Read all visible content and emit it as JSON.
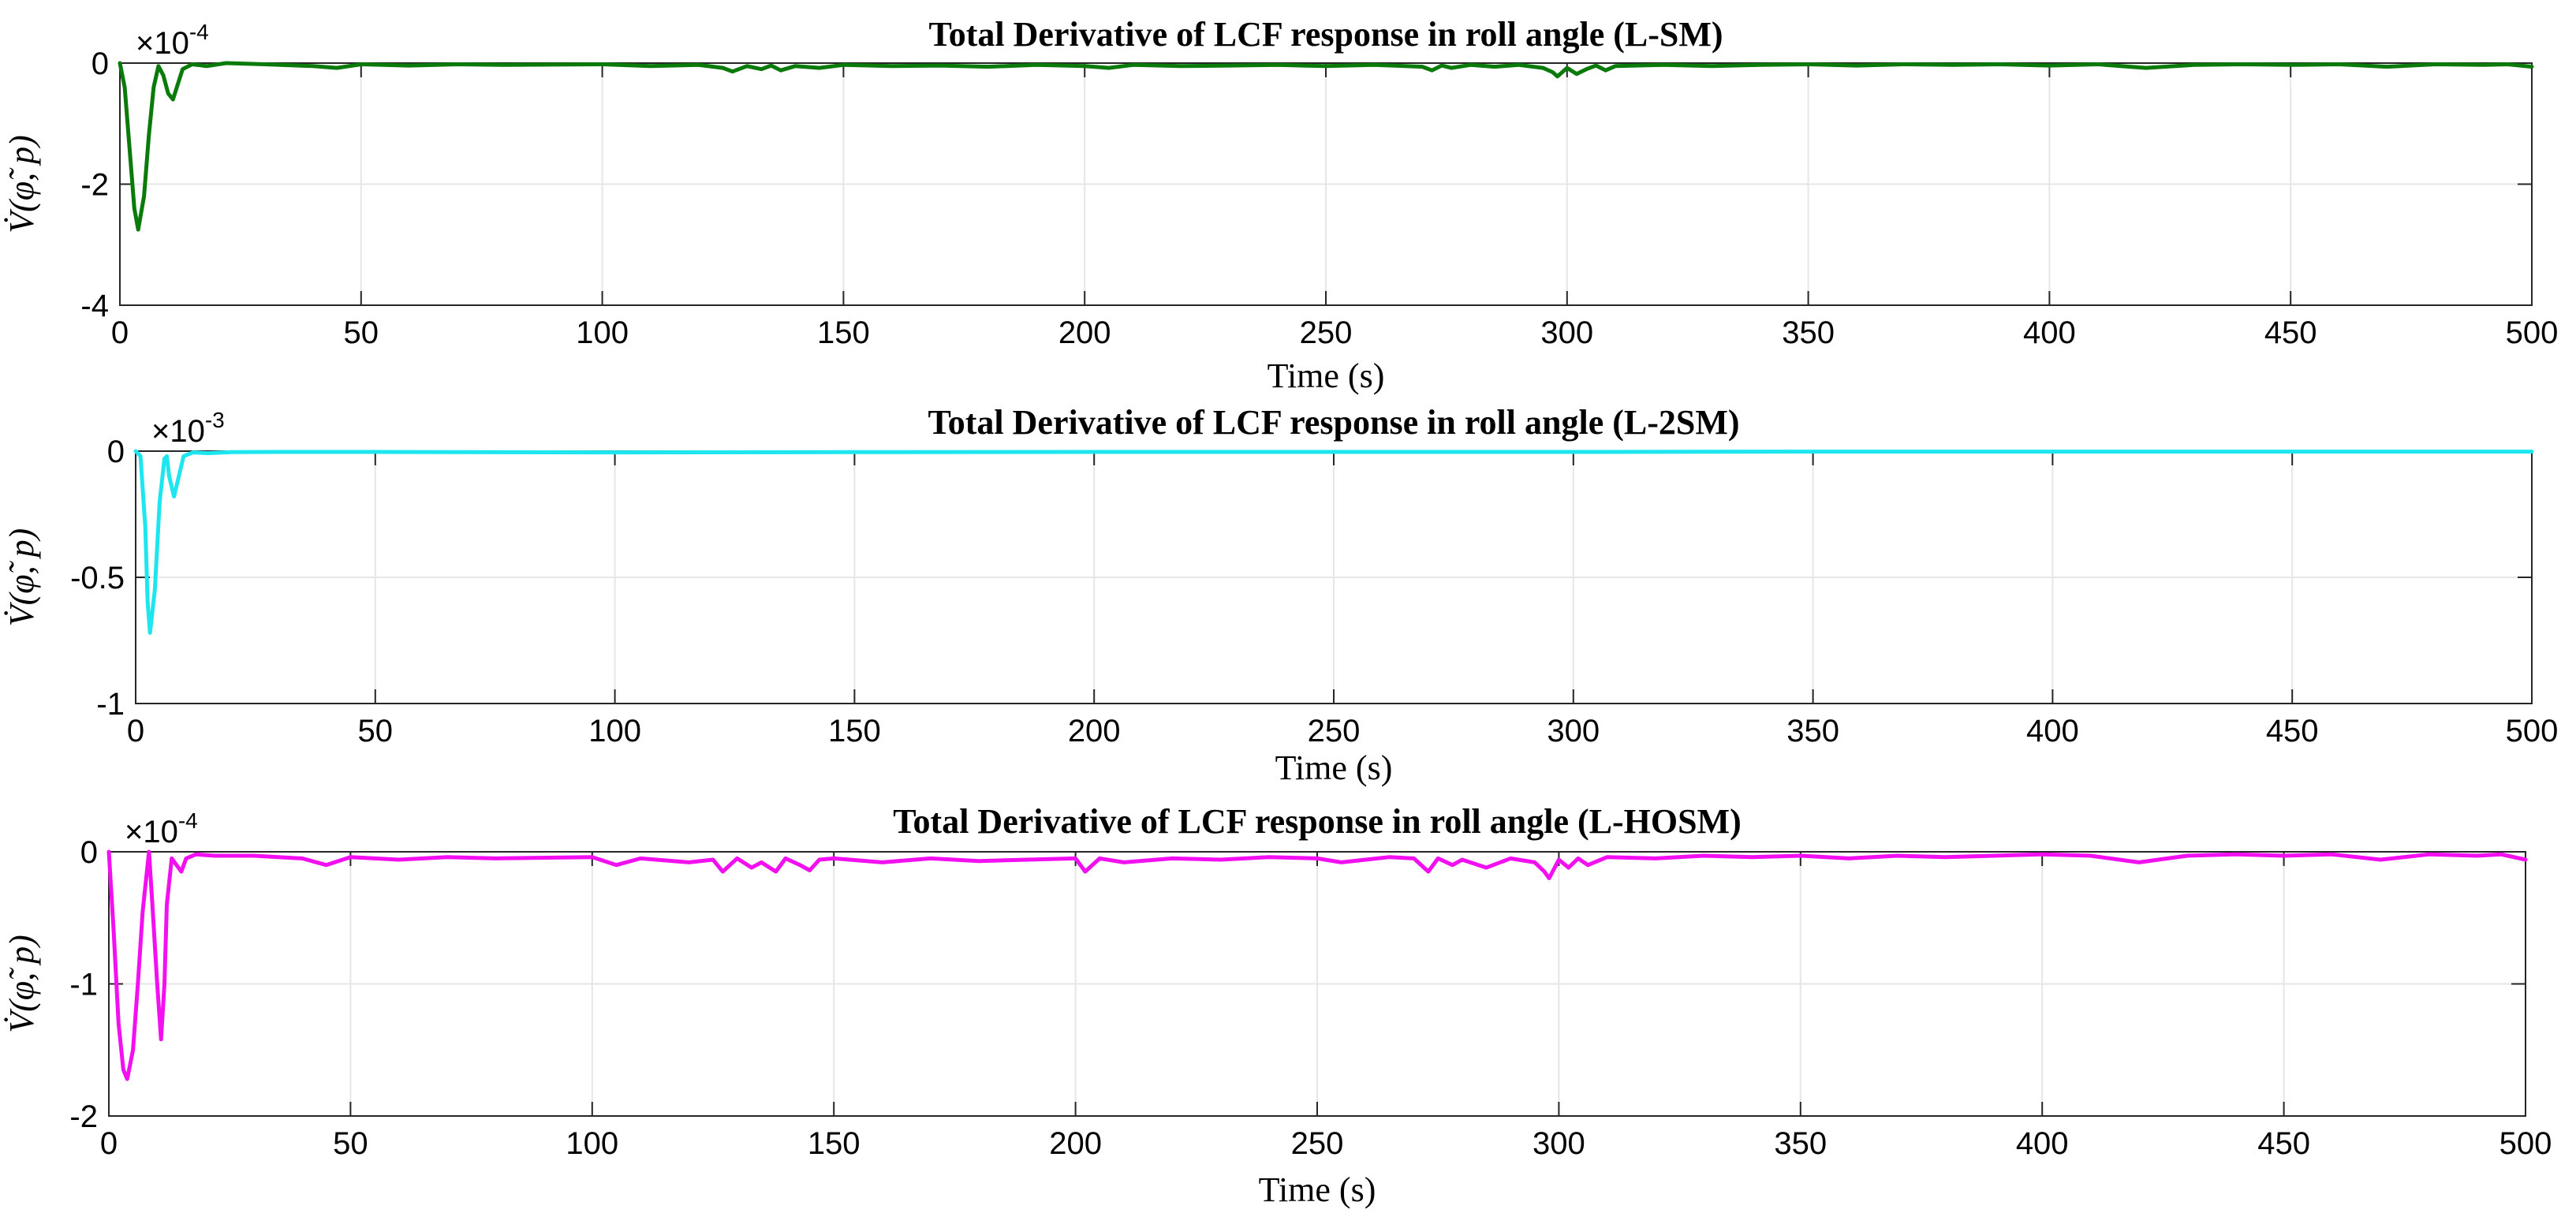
{
  "figure": {
    "background": "#ffffff",
    "grid_color": "#e6e6e6",
    "axis_color": "#262626"
  },
  "chart_data": [
    {
      "type": "line",
      "title": "Total Derivative of LCF response in roll angle (L-SM)",
      "xlabel": "Time (s)",
      "ylabel": "V̇(φ̃, p)",
      "exponent_base": "×10",
      "exponent_power": "-4",
      "scale": 0.0001,
      "xlim": [
        0,
        500
      ],
      "ylim": [
        -4,
        0
      ],
      "xticks": [
        0,
        50,
        100,
        150,
        200,
        250,
        300,
        350,
        400,
        450,
        500
      ],
      "yticks": [
        -4,
        -2,
        0
      ],
      "grid": true,
      "color": "#0a7a0a",
      "series": [
        {
          "name": "L-SM",
          "x": [
            0,
            1,
            2,
            3,
            3.8,
            5,
            6,
            7,
            8,
            9,
            10,
            11,
            12,
            13,
            15,
            18,
            22,
            30,
            40,
            45,
            50,
            60,
            70,
            80,
            100,
            110,
            120,
            125,
            127,
            130,
            133,
            135,
            137,
            140,
            145,
            150,
            160,
            170,
            180,
            190,
            200,
            205,
            210,
            220,
            230,
            240,
            250,
            260,
            270,
            272,
            274,
            276,
            280,
            285,
            290,
            295,
            297,
            298,
            300,
            302,
            304,
            306,
            308,
            310,
            320,
            330,
            340,
            350,
            360,
            370,
            380,
            390,
            400,
            410,
            420,
            430,
            440,
            450,
            460,
            470,
            480,
            490,
            495,
            500
          ],
          "y": [
            0,
            -0.4,
            -1.4,
            -2.4,
            -2.75,
            -2.2,
            -1.2,
            -0.4,
            -0.05,
            -0.2,
            -0.5,
            -0.6,
            -0.35,
            -0.1,
            -0.02,
            -0.05,
            0,
            -0.02,
            -0.05,
            -0.08,
            -0.02,
            -0.04,
            -0.02,
            -0.03,
            -0.02,
            -0.05,
            -0.03,
            -0.08,
            -0.14,
            -0.05,
            -0.1,
            -0.04,
            -0.12,
            -0.05,
            -0.08,
            -0.03,
            -0.05,
            -0.04,
            -0.06,
            -0.03,
            -0.05,
            -0.08,
            -0.03,
            -0.05,
            -0.04,
            -0.03,
            -0.05,
            -0.03,
            -0.06,
            -0.12,
            -0.04,
            -0.08,
            -0.03,
            -0.06,
            -0.03,
            -0.08,
            -0.15,
            -0.22,
            -0.08,
            -0.18,
            -0.1,
            -0.04,
            -0.12,
            -0.05,
            -0.03,
            -0.05,
            -0.03,
            -0.02,
            -0.04,
            -0.02,
            -0.03,
            -0.02,
            -0.04,
            -0.02,
            -0.08,
            -0.03,
            -0.02,
            -0.03,
            -0.02,
            -0.06,
            -0.02,
            -0.03,
            -0.02,
            -0.06
          ]
        }
      ]
    },
    {
      "type": "line",
      "title": "Total Derivative of LCF response in roll angle (L-2SM)",
      "xlabel": "Time (s)",
      "ylabel": "V̇(φ̃, p)",
      "exponent_base": "×10",
      "exponent_power": "-3",
      "scale": 0.001,
      "xlim": [
        0,
        500
      ],
      "ylim": [
        -1,
        0
      ],
      "xticks": [
        0,
        50,
        100,
        150,
        200,
        250,
        300,
        350,
        400,
        450,
        500
      ],
      "yticks": [
        -1,
        -0.5,
        0
      ],
      "grid": true,
      "color": "#1ee6ef",
      "series": [
        {
          "name": "L-2SM",
          "x": [
            0,
            1,
            2,
            2.5,
            3,
            4,
            5,
            6,
            6.5,
            7,
            8,
            9,
            10,
            12,
            15,
            20,
            30,
            50,
            100,
            150,
            200,
            250,
            300,
            350,
            400,
            450,
            500
          ],
          "y": [
            0,
            -0.02,
            -0.3,
            -0.6,
            -0.72,
            -0.55,
            -0.2,
            -0.03,
            -0.02,
            -0.1,
            -0.18,
            -0.1,
            -0.02,
            -0.005,
            -0.008,
            -0.004,
            -0.003,
            -0.003,
            -0.005,
            -0.004,
            -0.003,
            -0.003,
            -0.003,
            -0.002,
            -0.002,
            -0.002,
            -0.002
          ]
        }
      ]
    },
    {
      "type": "line",
      "title": "Total Derivative of LCF response in roll angle (L-HOSM)",
      "xlabel": "Time (s)",
      "ylabel": "V̇(φ̃, p)",
      "exponent_base": "×10",
      "exponent_power": "-4",
      "scale": 0.0001,
      "xlim": [
        0,
        500
      ],
      "ylim": [
        -2,
        0
      ],
      "xticks": [
        0,
        50,
        100,
        150,
        200,
        250,
        300,
        350,
        400,
        450,
        500
      ],
      "yticks": [
        -2,
        -1,
        0
      ],
      "grid": true,
      "color": "#f20ff0",
      "series": [
        {
          "name": "L-HOSM",
          "x": [
            0,
            1,
            2,
            3,
            3.8,
            5,
            6,
            7,
            8.3,
            9,
            10,
            10.8,
            11.5,
            12,
            13,
            14,
            15,
            16,
            18,
            22,
            30,
            40,
            45,
            50,
            60,
            70,
            80,
            100,
            105,
            110,
            120,
            125,
            127,
            130,
            133,
            135,
            138,
            140,
            143,
            145,
            147,
            150,
            160,
            170,
            180,
            190,
            200,
            202,
            205,
            210,
            220,
            230,
            240,
            250,
            255,
            260,
            265,
            270,
            273,
            275,
            278,
            280,
            285,
            290,
            295,
            297,
            298,
            300,
            302,
            304,
            306,
            310,
            320,
            330,
            340,
            350,
            360,
            370,
            380,
            390,
            400,
            410,
            420,
            430,
            440,
            450,
            460,
            470,
            480,
            490,
            495,
            500
          ],
          "y": [
            0,
            -0.6,
            -1.3,
            -1.65,
            -1.72,
            -1.5,
            -1.0,
            -0.45,
            0,
            -0.4,
            -1.0,
            -1.42,
            -1.0,
            -0.4,
            -0.05,
            -0.1,
            -0.15,
            -0.05,
            -0.02,
            -0.03,
            -0.03,
            -0.05,
            -0.1,
            -0.04,
            -0.06,
            -0.04,
            -0.05,
            -0.04,
            -0.1,
            -0.05,
            -0.08,
            -0.06,
            -0.15,
            -0.05,
            -0.12,
            -0.08,
            -0.15,
            -0.05,
            -0.1,
            -0.14,
            -0.06,
            -0.05,
            -0.08,
            -0.05,
            -0.07,
            -0.06,
            -0.05,
            -0.15,
            -0.05,
            -0.08,
            -0.05,
            -0.06,
            -0.04,
            -0.05,
            -0.08,
            -0.06,
            -0.04,
            -0.05,
            -0.15,
            -0.05,
            -0.1,
            -0.06,
            -0.12,
            -0.05,
            -0.08,
            -0.15,
            -0.2,
            -0.06,
            -0.12,
            -0.05,
            -0.1,
            -0.04,
            -0.05,
            -0.03,
            -0.04,
            -0.03,
            -0.05,
            -0.03,
            -0.04,
            -0.03,
            -0.02,
            -0.03,
            -0.08,
            -0.03,
            -0.02,
            -0.03,
            -0.02,
            -0.06,
            -0.02,
            -0.03,
            -0.02,
            -0.06
          ]
        }
      ]
    }
  ]
}
